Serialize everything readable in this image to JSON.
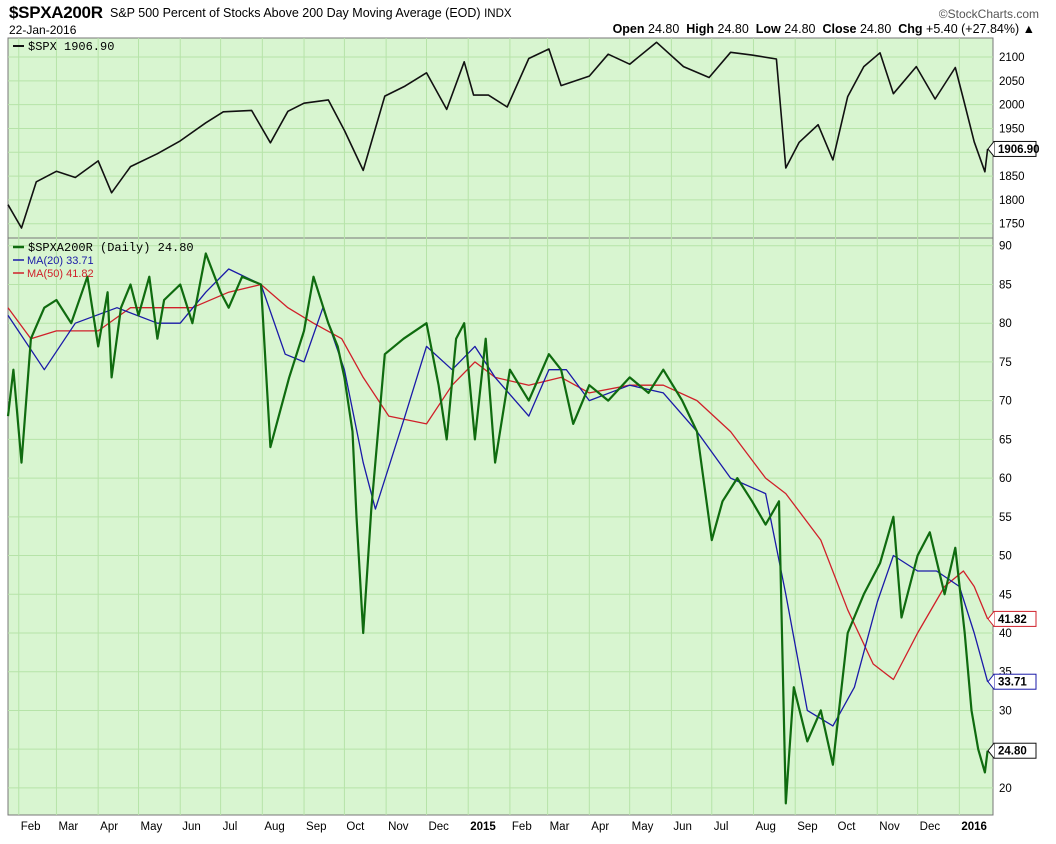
{
  "header": {
    "symbol": "$SPXA200R",
    "description": "S&P 500 Percent of Stocks Above 200 Day Moving Average (EOD)",
    "exchange": "INDX",
    "brand": "©StockCharts.com",
    "date": "22-Jan-2016",
    "open_label": "Open",
    "open": "24.80",
    "high_label": "High",
    "high": "24.80",
    "low_label": "Low",
    "low": "24.80",
    "close_label": "Close",
    "close": "24.80",
    "chg_label": "Chg",
    "chg": "+5.40 (+27.84%)",
    "chg_arrow": "▲"
  },
  "colors": {
    "background": "#d8f5d0",
    "grid": "#b6e3a8",
    "spx": "#111111",
    "breadth": "#0f6b0f",
    "ma20": "#1a1aa8",
    "ma50": "#d0202a"
  },
  "chart_data": [
    {
      "type": "line",
      "legend": "$SPX 1906.90",
      "last_value": "1906.90",
      "ylim": [
        1720,
        2140
      ],
      "yticks": [
        1750,
        1800,
        1850,
        1900,
        1950,
        2000,
        2050,
        2100
      ],
      "series": [
        {
          "name": "$SPX",
          "x": [
            "2014-01-24",
            "2014-02-03",
            "2014-02-14",
            "2014-03-01",
            "2014-03-15",
            "2014-04-01",
            "2014-04-11",
            "2014-04-25",
            "2014-05-15",
            "2014-06-01",
            "2014-06-20",
            "2014-07-03",
            "2014-07-24",
            "2014-08-07",
            "2014-08-20",
            "2014-09-01",
            "2014-09-19",
            "2014-10-01",
            "2014-10-15",
            "2014-10-31",
            "2014-11-15",
            "2014-12-01",
            "2014-12-16",
            "2014-12-29",
            "2015-01-05",
            "2015-01-16",
            "2015-01-30",
            "2015-02-15",
            "2015-03-02",
            "2015-03-11",
            "2015-04-01",
            "2015-04-15",
            "2015-05-01",
            "2015-05-21",
            "2015-06-10",
            "2015-06-29",
            "2015-07-15",
            "2015-07-31",
            "2015-08-18",
            "2015-08-25",
            "2015-09-04",
            "2015-09-18",
            "2015-09-29",
            "2015-10-10",
            "2015-10-22",
            "2015-11-03",
            "2015-11-13",
            "2015-11-30",
            "2015-12-14",
            "2015-12-29",
            "2016-01-04",
            "2016-01-12",
            "2016-01-20",
            "2016-01-22"
          ],
          "values": [
            1790,
            1741,
            1838,
            1860,
            1847,
            1882,
            1815,
            1870,
            1897,
            1924,
            1962,
            1985,
            1988,
            1920,
            1986,
            2003,
            2010,
            1946,
            1862,
            2018,
            2039,
            2067,
            1990,
            2090,
            2020,
            2020,
            1995,
            2097,
            2117,
            2040,
            2060,
            2106,
            2085,
            2131,
            2080,
            2057,
            2110,
            2104,
            2096,
            1867,
            1921,
            1958,
            1884,
            2017,
            2080,
            2109,
            2023,
            2080,
            2012,
            2078,
            2012,
            1922,
            1859,
            1907
          ]
        }
      ]
    },
    {
      "type": "line",
      "legend": "$SPXA200R (Daily) 24.80",
      "last_value": "24.80",
      "ylim": [
        16.5,
        91
      ],
      "yticks": [
        20,
        25,
        30,
        35,
        40,
        45,
        50,
        55,
        60,
        65,
        70,
        75,
        80,
        85,
        90
      ],
      "xticks": [
        "Feb",
        "Mar",
        "Apr",
        "May",
        "Jun",
        "Jul",
        "Aug",
        "Sep",
        "Oct",
        "Nov",
        "Dec",
        "2015",
        "Feb",
        "Mar",
        "Apr",
        "May",
        "Jun",
        "Jul",
        "Aug",
        "Sep",
        "Oct",
        "Nov",
        "Dec",
        "2016"
      ],
      "series": [
        {
          "name": "$SPXA200R (Daily)",
          "x": [
            "2014-01-24",
            "2014-01-28",
            "2014-02-03",
            "2014-02-10",
            "2014-02-20",
            "2014-03-01",
            "2014-03-12",
            "2014-03-24",
            "2014-04-01",
            "2014-04-08",
            "2014-04-11",
            "2014-04-18",
            "2014-04-25",
            "2014-05-01",
            "2014-05-09",
            "2014-05-15",
            "2014-05-20",
            "2014-06-01",
            "2014-06-10",
            "2014-06-20",
            "2014-07-01",
            "2014-07-07",
            "2014-07-17",
            "2014-07-31",
            "2014-08-07",
            "2014-08-21",
            "2014-09-01",
            "2014-09-08",
            "2014-09-19",
            "2014-09-26",
            "2014-10-01",
            "2014-10-07",
            "2014-10-10",
            "2014-10-15",
            "2014-10-21",
            "2014-10-31",
            "2014-11-14",
            "2014-12-01",
            "2014-12-10",
            "2014-12-16",
            "2014-12-23",
            "2014-12-29",
            "2015-01-06",
            "2015-01-14",
            "2015-01-21",
            "2015-02-01",
            "2015-02-15",
            "2015-03-02",
            "2015-03-11",
            "2015-03-20",
            "2015-04-01",
            "2015-04-15",
            "2015-05-01",
            "2015-05-15",
            "2015-05-26",
            "2015-06-09",
            "2015-06-20",
            "2015-07-01",
            "2015-07-09",
            "2015-07-20",
            "2015-07-31",
            "2015-08-10",
            "2015-08-20",
            "2015-08-25",
            "2015-08-31",
            "2015-09-10",
            "2015-09-20",
            "2015-09-29",
            "2015-10-10",
            "2015-10-22",
            "2015-11-03",
            "2015-11-13",
            "2015-11-19",
            "2015-12-01",
            "2015-12-10",
            "2015-12-21",
            "2015-12-29",
            "2016-01-05",
            "2016-01-10",
            "2016-01-15",
            "2016-01-20",
            "2016-01-22"
          ],
          "values": [
            68,
            74,
            62,
            78,
            82,
            83,
            80,
            86,
            77,
            84,
            73,
            82,
            85,
            81,
            86,
            78,
            83,
            85,
            80,
            89,
            84,
            82,
            86,
            85,
            64,
            73,
            79,
            86,
            80,
            77,
            73,
            66,
            55,
            40,
            56,
            76,
            78,
            80,
            72,
            65,
            78,
            80,
            65,
            78,
            62,
            74,
            70,
            76,
            74,
            67,
            72,
            70,
            73,
            71,
            74,
            70,
            66,
            52,
            57,
            60,
            57,
            54,
            57,
            18,
            33,
            26,
            30,
            23,
            40,
            45,
            49,
            55,
            42,
            50,
            53,
            45,
            51,
            40,
            30,
            25,
            22,
            24.8
          ]
        },
        {
          "name": "MA(20)",
          "label_value": "33.71",
          "x": [
            "2014-01-24",
            "2014-02-20",
            "2014-03-15",
            "2014-04-15",
            "2014-05-15",
            "2014-06-01",
            "2014-06-20",
            "2014-07-07",
            "2014-07-31",
            "2014-08-18",
            "2014-09-01",
            "2014-09-15",
            "2014-10-01",
            "2014-10-15",
            "2014-10-24",
            "2014-11-15",
            "2014-12-01",
            "2014-12-20",
            "2015-01-06",
            "2015-01-21",
            "2015-02-15",
            "2015-03-02",
            "2015-03-15",
            "2015-04-01",
            "2015-05-01",
            "2015-05-26",
            "2015-06-20",
            "2015-07-15",
            "2015-08-10",
            "2015-08-25",
            "2015-09-10",
            "2015-09-29",
            "2015-10-15",
            "2015-11-01",
            "2015-11-13",
            "2015-12-01",
            "2015-12-15",
            "2016-01-01",
            "2016-01-12",
            "2016-01-22"
          ],
          "values": [
            81,
            74,
            80,
            82,
            80,
            80,
            84,
            87,
            85,
            76,
            75,
            82,
            74,
            62,
            56,
            68,
            77,
            74,
            77,
            73,
            68,
            74,
            74,
            70,
            72,
            71,
            66,
            60,
            58,
            45,
            30,
            28,
            33,
            44,
            50,
            48,
            48,
            46,
            40,
            33.71
          ]
        },
        {
          "name": "MA(50)",
          "label_value": "41.82",
          "x": [
            "2014-01-24",
            "2014-02-10",
            "2014-03-01",
            "2014-04-01",
            "2014-04-25",
            "2014-05-15",
            "2014-06-10",
            "2014-07-07",
            "2014-07-31",
            "2014-08-20",
            "2014-09-08",
            "2014-09-29",
            "2014-10-15",
            "2014-11-03",
            "2014-12-01",
            "2014-12-20",
            "2015-01-06",
            "2015-01-21",
            "2015-02-15",
            "2015-03-11",
            "2015-04-01",
            "2015-05-01",
            "2015-05-26",
            "2015-06-20",
            "2015-07-15",
            "2015-08-10",
            "2015-08-25",
            "2015-09-20",
            "2015-10-10",
            "2015-10-29",
            "2015-11-13",
            "2015-12-01",
            "2015-12-21",
            "2016-01-04",
            "2016-01-12",
            "2016-01-22"
          ],
          "values": [
            82,
            78,
            79,
            79,
            82,
            82,
            82,
            84,
            85,
            82,
            80,
            78,
            73,
            68,
            67,
            72,
            75,
            73,
            72,
            73,
            71,
            72,
            72,
            70,
            66,
            60,
            58,
            52,
            43,
            36,
            34,
            40,
            46,
            48,
            46,
            41.82
          ]
        }
      ]
    }
  ]
}
